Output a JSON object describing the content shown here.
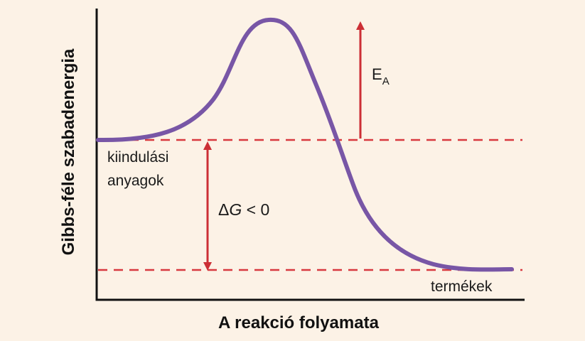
{
  "y_axis_title": "Gibbs-féle szabadenergia",
  "x_axis_title": "A reakció folyamata",
  "reactants_label": [
    "kiindulási",
    "anyagok"
  ],
  "products_label": "termékek",
  "activation_energy": {
    "symbol": "E",
    "subscript": "A"
  },
  "delta_g": {
    "delta": "Δ",
    "symbol": "G",
    "relation": " < 0"
  },
  "colors": {
    "background": "#fcf2e6",
    "curve": "#7856a6",
    "dashed": "#d8393f",
    "arrow": "#cc2f35",
    "axis": "#111111"
  }
}
